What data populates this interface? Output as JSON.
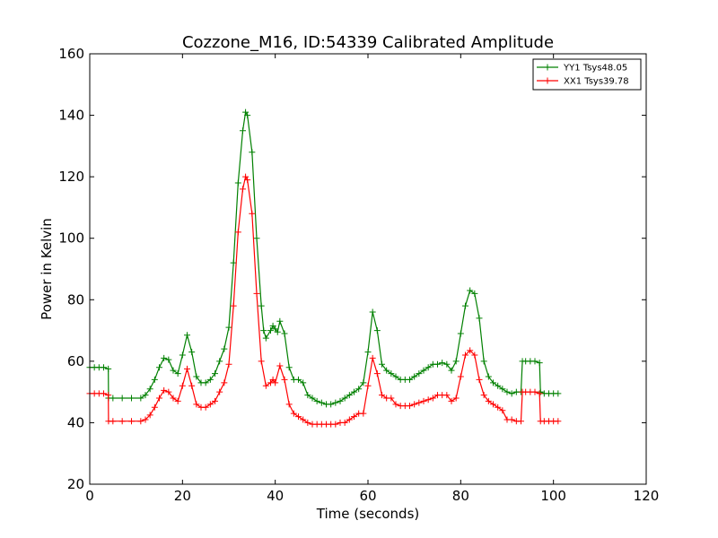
{
  "chart_data": {
    "type": "line",
    "title": "Cozzone_M16, ID:54339 Calibrated Amplitude",
    "xlabel": "Time (seconds)",
    "ylabel": "Power in Kelvin",
    "xlim": [
      0,
      120
    ],
    "ylim": [
      20,
      160
    ],
    "xticks": [
      0,
      20,
      40,
      60,
      80,
      100,
      120
    ],
    "yticks": [
      20,
      40,
      60,
      80,
      100,
      120,
      140,
      160
    ],
    "legend_position": "top-right",
    "grid": false,
    "marker": "+",
    "series": [
      {
        "name": "YY1 Tsys48.05",
        "color": "#008000",
        "points": [
          [
            0,
            58
          ],
          [
            1,
            58
          ],
          [
            2,
            58
          ],
          [
            3,
            58
          ],
          [
            4,
            57.5
          ],
          [
            4.05,
            48
          ],
          [
            5,
            48
          ],
          [
            7,
            48
          ],
          [
            9,
            48
          ],
          [
            11,
            48
          ],
          [
            12,
            49
          ],
          [
            13,
            51
          ],
          [
            14,
            54
          ],
          [
            15,
            58
          ],
          [
            16,
            61
          ],
          [
            17,
            60.5
          ],
          [
            18,
            57
          ],
          [
            19,
            56
          ],
          [
            20,
            62
          ],
          [
            21,
            68.5
          ],
          [
            22,
            63
          ],
          [
            23,
            55
          ],
          [
            24,
            53
          ],
          [
            25,
            53
          ],
          [
            26,
            54
          ],
          [
            27,
            56
          ],
          [
            28,
            60
          ],
          [
            29,
            64
          ],
          [
            30,
            71
          ],
          [
            31,
            92
          ],
          [
            32,
            118
          ],
          [
            33,
            135
          ],
          [
            33.6,
            141
          ],
          [
            34,
            140
          ],
          [
            35,
            128
          ],
          [
            36,
            100
          ],
          [
            37,
            78
          ],
          [
            37.5,
            70
          ],
          [
            38,
            67.5
          ],
          [
            39,
            70
          ],
          [
            39.5,
            71.5
          ],
          [
            40,
            70.5
          ],
          [
            40.5,
            69.5
          ],
          [
            41,
            73
          ],
          [
            42,
            69
          ],
          [
            43,
            58
          ],
          [
            44,
            54
          ],
          [
            45,
            54
          ],
          [
            46,
            53
          ],
          [
            47,
            49
          ],
          [
            48,
            48
          ],
          [
            49,
            47
          ],
          [
            50,
            46.5
          ],
          [
            51,
            46
          ],
          [
            52,
            46
          ],
          [
            53,
            46.5
          ],
          [
            54,
            47
          ],
          [
            55,
            48
          ],
          [
            56,
            49
          ],
          [
            57,
            50
          ],
          [
            58,
            51
          ],
          [
            59,
            53
          ],
          [
            60,
            63
          ],
          [
            61,
            76
          ],
          [
            62,
            70
          ],
          [
            63,
            59
          ],
          [
            64,
            57
          ],
          [
            65,
            56
          ],
          [
            66,
            55
          ],
          [
            67,
            54
          ],
          [
            68,
            54
          ],
          [
            69,
            54
          ],
          [
            70,
            55
          ],
          [
            71,
            56
          ],
          [
            72,
            57
          ],
          [
            73,
            58
          ],
          [
            74,
            59
          ],
          [
            75,
            59
          ],
          [
            76,
            59.5
          ],
          [
            77,
            59
          ],
          [
            78,
            57
          ],
          [
            79,
            60
          ],
          [
            80,
            69
          ],
          [
            81,
            78
          ],
          [
            82,
            83
          ],
          [
            83,
            82
          ],
          [
            84,
            74
          ],
          [
            85,
            60
          ],
          [
            86,
            55
          ],
          [
            87,
            53
          ],
          [
            88,
            52
          ],
          [
            89,
            51
          ],
          [
            90,
            50
          ],
          [
            91,
            49.5
          ],
          [
            92,
            50
          ],
          [
            93,
            50
          ],
          [
            93.3,
            60
          ],
          [
            94,
            60
          ],
          [
            95,
            60
          ],
          [
            96,
            60
          ],
          [
            97,
            59.5
          ],
          [
            97.2,
            50
          ],
          [
            98,
            49.5
          ],
          [
            99,
            49.5
          ],
          [
            100,
            49.5
          ],
          [
            101,
            49.5
          ]
        ]
      },
      {
        "name": "XX1 Tsys39.78",
        "color": "#ff0000",
        "points": [
          [
            0,
            49.5
          ],
          [
            1,
            49.5
          ],
          [
            2,
            49.5
          ],
          [
            3,
            49.5
          ],
          [
            4,
            49
          ],
          [
            4.05,
            40.5
          ],
          [
            5,
            40.5
          ],
          [
            7,
            40.5
          ],
          [
            9,
            40.5
          ],
          [
            11,
            40.5
          ],
          [
            12,
            41
          ],
          [
            13,
            42.5
          ],
          [
            14,
            45
          ],
          [
            15,
            48
          ],
          [
            16,
            50.5
          ],
          [
            17,
            50
          ],
          [
            18,
            48
          ],
          [
            19,
            47
          ],
          [
            20,
            52
          ],
          [
            21,
            57.5
          ],
          [
            22,
            52
          ],
          [
            23,
            46
          ],
          [
            24,
            45
          ],
          [
            25,
            45
          ],
          [
            26,
            46
          ],
          [
            27,
            47
          ],
          [
            28,
            50
          ],
          [
            29,
            53
          ],
          [
            30,
            59
          ],
          [
            31,
            78
          ],
          [
            32,
            102
          ],
          [
            33,
            116
          ],
          [
            33.6,
            120
          ],
          [
            34,
            119
          ],
          [
            35,
            108
          ],
          [
            36,
            82
          ],
          [
            37,
            60
          ],
          [
            38,
            52
          ],
          [
            39,
            53
          ],
          [
            39.5,
            54
          ],
          [
            40,
            53
          ],
          [
            41,
            58.5
          ],
          [
            42,
            54
          ],
          [
            43,
            46
          ],
          [
            44,
            43
          ],
          [
            45,
            42
          ],
          [
            46,
            41
          ],
          [
            47,
            40
          ],
          [
            48,
            39.5
          ],
          [
            49,
            39.5
          ],
          [
            50,
            39.5
          ],
          [
            51,
            39.5
          ],
          [
            52,
            39.5
          ],
          [
            53,
            39.5
          ],
          [
            54,
            40
          ],
          [
            55,
            40
          ],
          [
            56,
            41
          ],
          [
            57,
            42
          ],
          [
            58,
            43
          ],
          [
            59,
            43
          ],
          [
            60,
            52
          ],
          [
            61,
            61
          ],
          [
            62,
            56
          ],
          [
            63,
            49
          ],
          [
            64,
            48
          ],
          [
            65,
            48
          ],
          [
            66,
            46
          ],
          [
            67,
            45.5
          ],
          [
            68,
            45.5
          ],
          [
            69,
            45.5
          ],
          [
            70,
            46
          ],
          [
            71,
            46.5
          ],
          [
            72,
            47
          ],
          [
            73,
            47.5
          ],
          [
            74,
            48
          ],
          [
            75,
            49
          ],
          [
            76,
            49
          ],
          [
            77,
            49
          ],
          [
            78,
            47
          ],
          [
            79,
            48
          ],
          [
            80,
            55
          ],
          [
            81,
            62
          ],
          [
            82,
            63.5
          ],
          [
            83,
            62
          ],
          [
            84,
            54
          ],
          [
            85,
            49
          ],
          [
            86,
            47
          ],
          [
            87,
            46
          ],
          [
            88,
            45
          ],
          [
            89,
            44
          ],
          [
            90,
            41
          ],
          [
            91,
            41
          ],
          [
            92,
            40.5
          ],
          [
            93,
            40.5
          ],
          [
            93.3,
            50
          ],
          [
            94,
            50
          ],
          [
            95,
            50
          ],
          [
            96,
            50
          ],
          [
            97,
            49.5
          ],
          [
            97.2,
            40.5
          ],
          [
            98,
            40.5
          ],
          [
            99,
            40.5
          ],
          [
            100,
            40.5
          ],
          [
            101,
            40.5
          ]
        ]
      }
    ]
  }
}
